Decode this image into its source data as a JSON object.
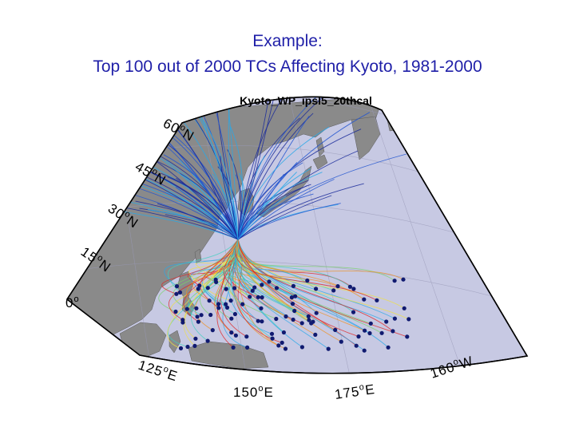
{
  "slide": {
    "title_line1": "Example:",
    "title_line2": "Top 100 out of 2000 TCs Affecting Kyoto, 1981-2000"
  },
  "map": {
    "title": "Kyoto_WP_ipsl5_20thcal",
    "ocean_color": "#c7c9e3",
    "land_color": "#8a8a8a",
    "track_colors": [
      "#1a2a9a",
      "#2255d0",
      "#28a8e8",
      "#40d0c0",
      "#7ad36a",
      "#f0e040",
      "#f09020",
      "#e02020"
    ],
    "lat_labels": [
      {
        "num": "60",
        "hem": "N"
      },
      {
        "num": "45",
        "hem": "N"
      },
      {
        "num": "30",
        "hem": "N"
      },
      {
        "num": "15",
        "hem": "N"
      },
      {
        "num": "0",
        "hem": ""
      }
    ],
    "lon_labels": [
      {
        "num": "125",
        "hem": "E"
      },
      {
        "num": "150",
        "hem": "E"
      },
      {
        "num": "175",
        "hem": "E"
      },
      {
        "num": "160",
        "hem": "W"
      }
    ],
    "convergence_point": "Kyoto"
  }
}
